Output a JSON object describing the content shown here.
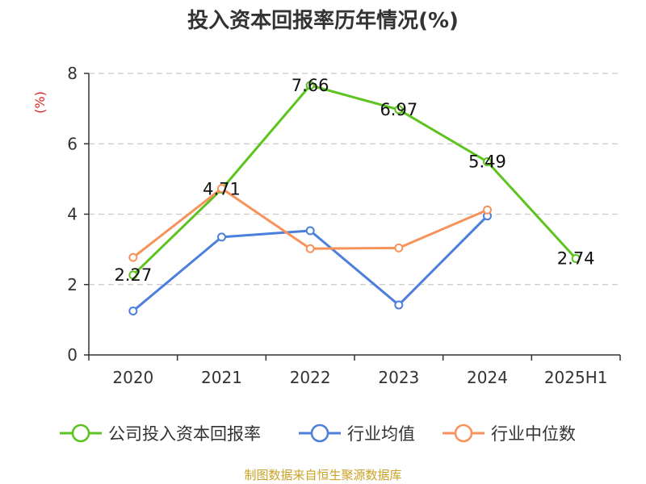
{
  "chart_data": {
    "type": "line",
    "title": "投入资本回报率历年情况(%)",
    "ylabel": "(%)",
    "xlabel": "",
    "categories": [
      "2020",
      "2021",
      "2022",
      "2023",
      "2024",
      "2025H1"
    ],
    "ylim": [
      0,
      8
    ],
    "yticks": [
      0,
      2,
      4,
      6,
      8
    ],
    "grid": true,
    "legend_position": "bottom",
    "series": [
      {
        "name": "公司投入资本回报率",
        "color": "#5cc31f",
        "values": [
          2.27,
          4.71,
          7.66,
          6.97,
          5.49,
          2.74
        ],
        "labels": [
          "2.27",
          "4.71",
          "7.66",
          "6.97",
          "5.49",
          "2.74"
        ],
        "marker": "open-circle"
      },
      {
        "name": "行业均值",
        "color": "#4c7fdb",
        "values": [
          1.25,
          3.35,
          3.53,
          1.42,
          3.95,
          null
        ],
        "marker": "open-circle"
      },
      {
        "name": "行业中位数",
        "color": "#f7925a",
        "values": [
          2.77,
          4.73,
          3.02,
          3.04,
          4.12,
          null
        ],
        "marker": "open-circle"
      }
    ]
  },
  "source": "制图数据来自恒生聚源数据库"
}
